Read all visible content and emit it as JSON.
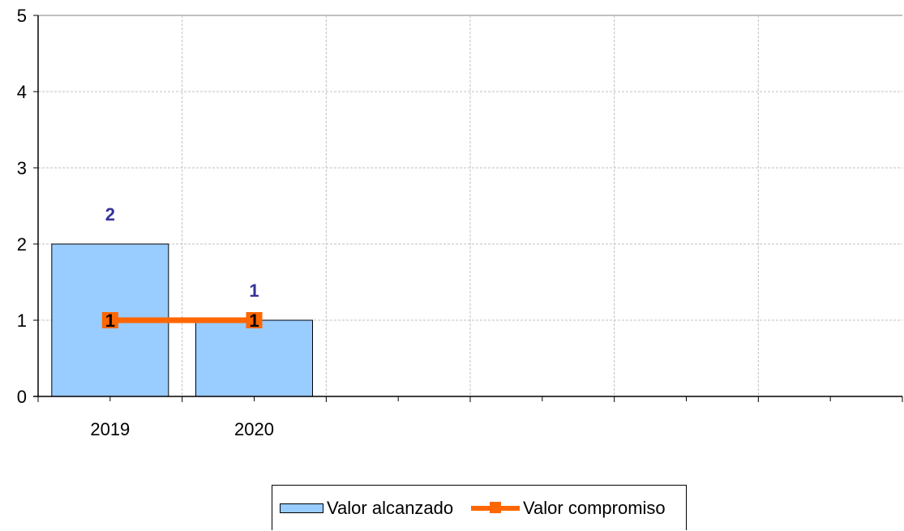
{
  "chart_data": {
    "type": "bar",
    "categories": [
      "2019",
      "2020",
      "",
      "",
      "",
      ""
    ],
    "series": [
      {
        "name": "Valor alcanzado",
        "type": "bar",
        "values": [
          2,
          1,
          null,
          null,
          null,
          null
        ],
        "data_labels": [
          "2",
          "1"
        ]
      },
      {
        "name": "Valor compromiso",
        "type": "line",
        "values": [
          1,
          1,
          null,
          null,
          null,
          null
        ],
        "data_labels": [
          "1",
          "1"
        ]
      }
    ],
    "y_ticks": [
      "0",
      "1",
      "2",
      "3",
      "4",
      "5"
    ],
    "ylim": [
      0,
      5
    ],
    "grid": true,
    "legend_position": "bottom",
    "colors": {
      "bar_fill": "#99ccff",
      "bar_border": "#000000",
      "line": "#ff6600",
      "bar_label": "#33339a",
      "grid": "#c0c0c0"
    }
  }
}
